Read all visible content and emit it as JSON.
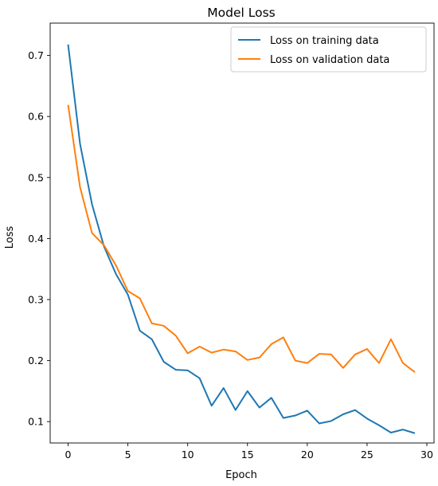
{
  "chart_data": {
    "type": "line",
    "title": "Model Loss",
    "xlabel": "Epoch",
    "ylabel": "Loss",
    "xlim": [
      -1.5,
      30.6
    ],
    "ylim": [
      0.065,
      0.753
    ],
    "xticks": [
      0,
      5,
      10,
      15,
      20,
      25,
      30
    ],
    "yticks": [
      0.1,
      0.2,
      0.3,
      0.4,
      0.5,
      0.6,
      0.7
    ],
    "grid": false,
    "legend_position": "top-right",
    "x": [
      0,
      1,
      2,
      3,
      4,
      5,
      6,
      7,
      8,
      9,
      10,
      11,
      12,
      13,
      14,
      15,
      16,
      17,
      18,
      19,
      20,
      21,
      22,
      23,
      24,
      25,
      26,
      27,
      28,
      29
    ],
    "series": [
      {
        "name": "Loss on training data",
        "color": "#1f77b4",
        "values": [
          0.718,
          0.555,
          0.456,
          0.387,
          0.342,
          0.308,
          0.249,
          0.235,
          0.198,
          0.185,
          0.184,
          0.171,
          0.126,
          0.155,
          0.119,
          0.15,
          0.123,
          0.139,
          0.106,
          0.11,
          0.118,
          0.097,
          0.101,
          0.112,
          0.119,
          0.105,
          0.094,
          0.082,
          0.087,
          0.081
        ]
      },
      {
        "name": "Loss on validation data",
        "color": "#ff7f0e",
        "values": [
          0.619,
          0.484,
          0.409,
          0.389,
          0.356,
          0.314,
          0.302,
          0.261,
          0.257,
          0.241,
          0.212,
          0.223,
          0.213,
          0.218,
          0.215,
          0.201,
          0.205,
          0.227,
          0.238,
          0.2,
          0.196,
          0.211,
          0.21,
          0.188,
          0.21,
          0.219,
          0.196,
          0.235,
          0.196,
          0.181
        ]
      }
    ]
  }
}
